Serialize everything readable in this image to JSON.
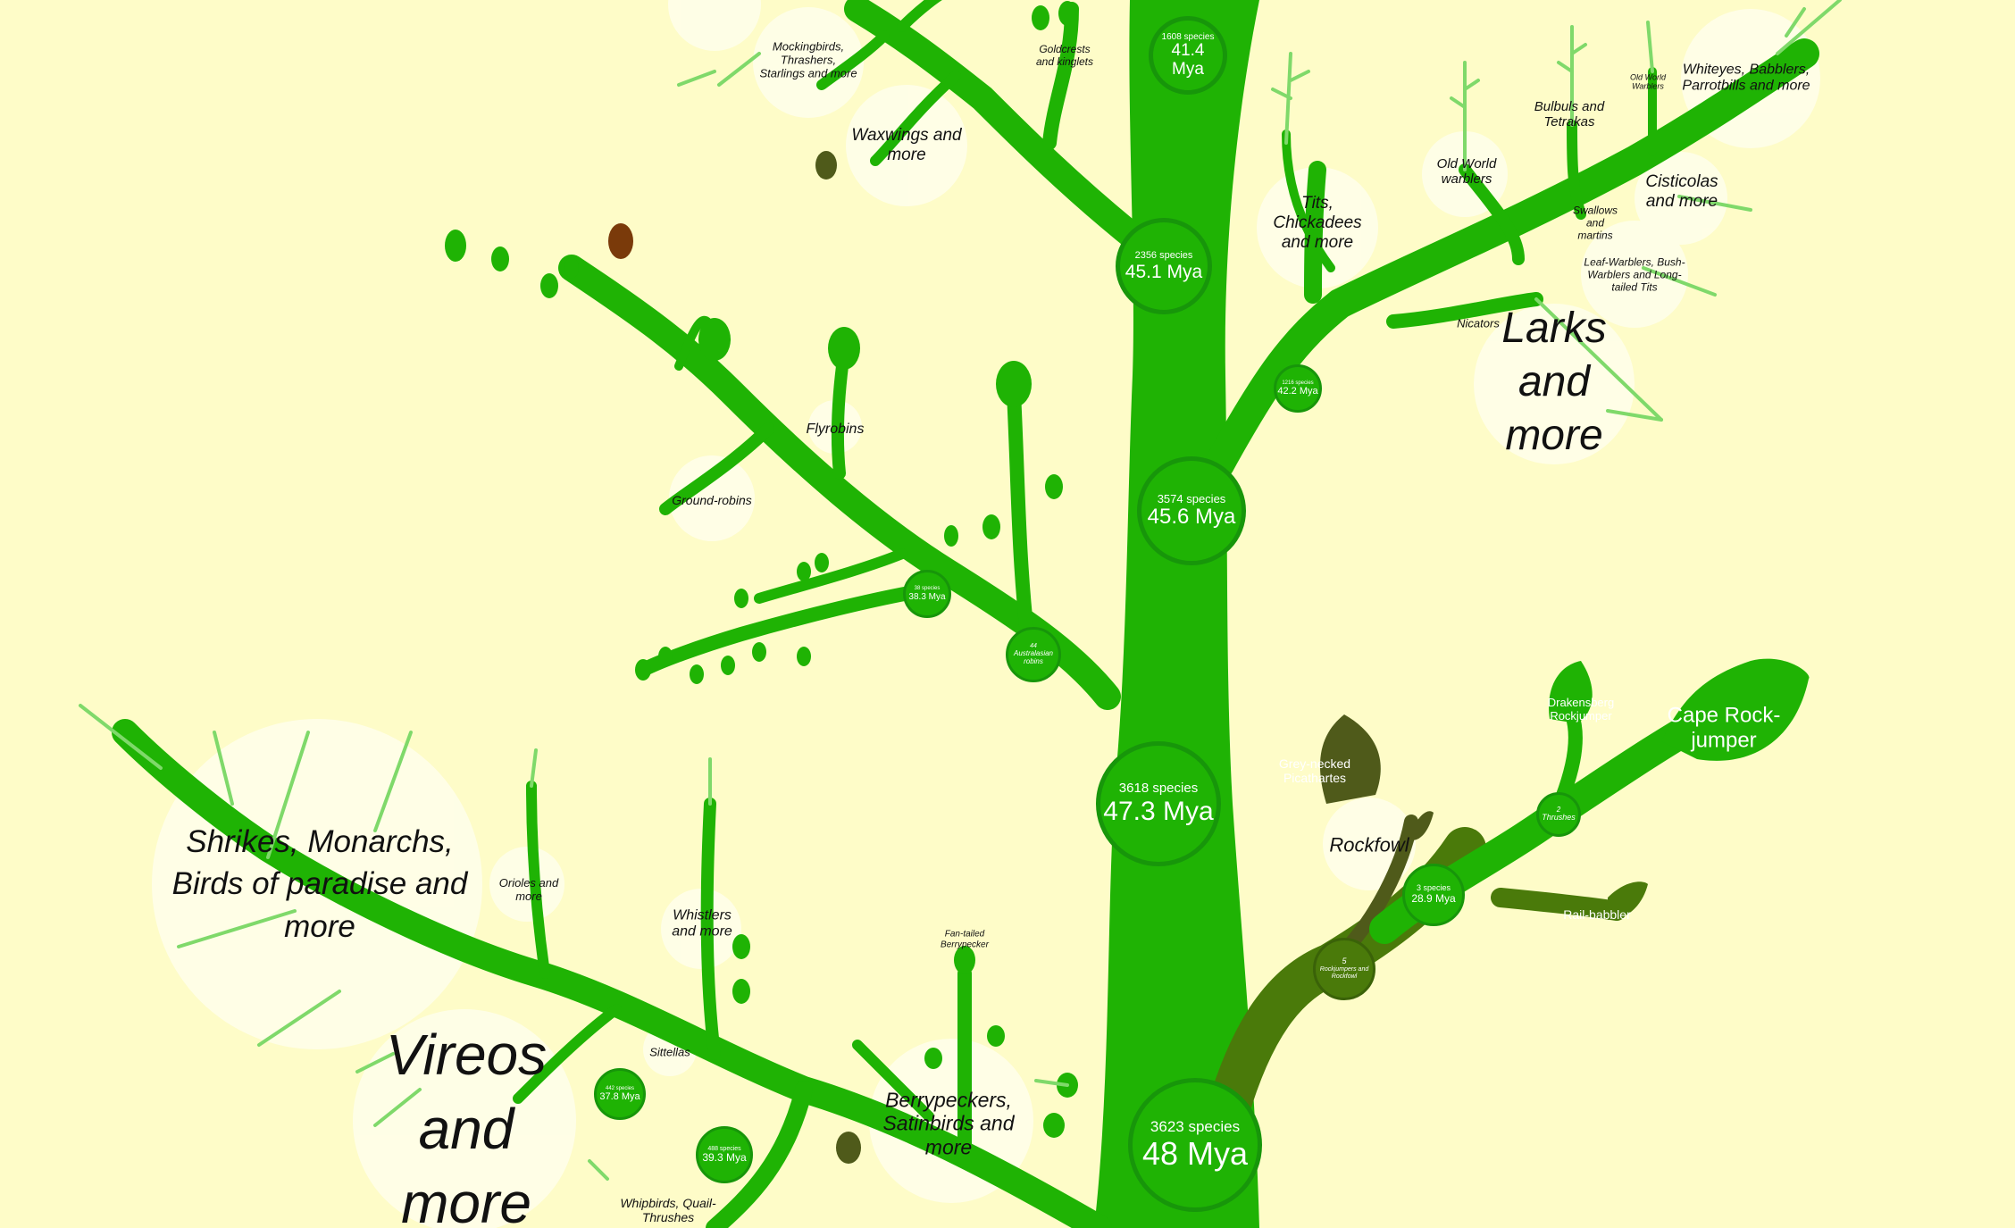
{
  "colors": {
    "background": "#fefcc8",
    "branch": "#1fb304",
    "branch_dark": "#17960a",
    "olive": "#4a7a0a",
    "dark_olive": "#4f5a1a",
    "leaf_light": "#8fdf80",
    "halo": "#fffff0"
  },
  "nodes": {
    "n48": {
      "species": "3623 species",
      "mya": "48 Mya"
    },
    "n47": {
      "species": "3618 species",
      "mya": "47.3 Mya"
    },
    "n456": {
      "species": "3574 species",
      "mya": "45.6 Mya"
    },
    "n451": {
      "species": "2356 species",
      "mya": "45.1 Mya"
    },
    "n414": {
      "species": "1608 species",
      "mya": "41.4 Mya"
    },
    "n422": {
      "species": "1216 species",
      "mya": "42.2 Mya"
    },
    "n383": {
      "species": "38 species",
      "mya": "38.3 Mya"
    },
    "n44": {
      "species": "44",
      "mya": "Australasian robins"
    },
    "n378": {
      "species": "442 species",
      "mya": "37.8 Mya"
    },
    "n393": {
      "species": "488 species",
      "mya": "39.3 Mya"
    },
    "n289": {
      "species": "3 species",
      "mya": "28.9 Mya"
    },
    "n5": {
      "species": "5",
      "mya": "Rockjumpers and Rockfowl"
    },
    "n2": {
      "species": "2",
      "mya": "Thrushes"
    }
  },
  "labels": {
    "mockingbirds": "Mockingbirds, Thrashers, Starlings and more",
    "goldcrests": "Goldcrests and kinglets",
    "waxwings": "Waxwings and more",
    "whiteyes": "Whiteyes, Babblers, Parrotbills and more",
    "oldworld_small": "Old World Warblers",
    "bulbuls": "Bulbuls and Tetrakas",
    "oldworld": "Old World warblers",
    "cisticolas": "Cisticolas and more",
    "swallows": "Swallows and martins",
    "leafwarblers": "Leaf-Warblers, Bush-Warblers and Long-tailed Tits",
    "tits": "Tits, Chickadees and more",
    "nicators": "Nicators",
    "larks": "Larks and more",
    "flyrobins": "Flyrobins",
    "groundrobins": "Ground-robins",
    "drakensberg": "Drakensberg Rockjumper",
    "cape": "Cape Rock-jumper",
    "greynecked": "Grey-necked Picathartes",
    "rockfowl": "Rockfowl",
    "railbabbler": "Rail-babbler",
    "shrikes": "Shrikes, Monarchs, Birds of paradise and more",
    "orioles": "Orioles and more",
    "whistlers": "Whistlers and more",
    "sittellas": "Sittellas",
    "vireos": "Vireos and more",
    "fantailed": "Fan-tailed Berrypecker",
    "berrypeckers": "Berrypeckers, Satinbirds and more",
    "whipbirds": "Whipbirds, Quail-Thrushes"
  }
}
